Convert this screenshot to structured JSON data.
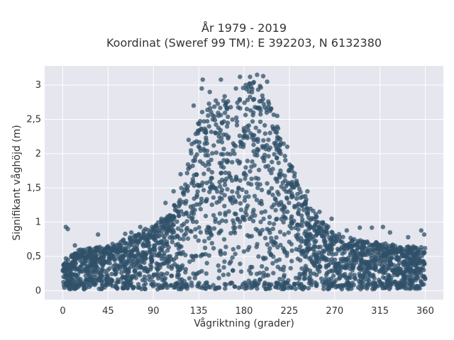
{
  "chart_data": {
    "type": "scatter",
    "title": "År 1979 - 2019",
    "subtitle": "Koordinat (Sweref 99 TM): E 392203, N 6132380",
    "xlabel": "Vågriktning (grader)",
    "ylabel": "Signifikant våghöjd (m)",
    "xlim": [
      -18,
      378
    ],
    "ylim": [
      -0.13,
      3.28
    ],
    "xticks": [
      0,
      45,
      90,
      135,
      180,
      225,
      270,
      315,
      360
    ],
    "xtick_labels": [
      "0",
      "45",
      "90",
      "135",
      "180",
      "225",
      "270",
      "315",
      "360"
    ],
    "yticks": [
      0,
      0.5,
      1,
      1.5,
      2,
      2.5,
      3
    ],
    "ytick_labels": [
      "0",
      "0,5",
      "1",
      "1,5",
      "2",
      "2,5",
      "3"
    ],
    "grid": true,
    "legend": "none",
    "colors": {
      "marker": "#2f5068",
      "plot_bg": "#e5e6ee",
      "grid": "#ffffff"
    },
    "envelope": {
      "x": [
        0,
        20,
        45,
        70,
        90,
        105,
        120,
        130,
        140,
        150,
        160,
        170,
        180,
        190,
        200,
        210,
        225,
        240,
        255,
        270,
        290,
        315,
        340,
        360
      ],
      "y_max": [
        0.5,
        0.62,
        0.66,
        0.8,
        0.95,
        1.1,
        1.6,
        2.3,
        2.75,
        2.8,
        2.85,
        2.75,
        3.0,
        3.05,
        2.95,
        2.6,
        1.9,
        1.4,
        1.05,
        0.85,
        0.75,
        0.7,
        0.65,
        0.65
      ]
    },
    "outliers": [
      {
        "x": 3,
        "y": 0.93
      },
      {
        "x": 5,
        "y": 0.9
      },
      {
        "x": 12,
        "y": 0.66
      },
      {
        "x": 35,
        "y": 0.82
      },
      {
        "x": 62,
        "y": 0.83
      },
      {
        "x": 68,
        "y": 0.85
      },
      {
        "x": 77,
        "y": 0.93
      },
      {
        "x": 82,
        "y": 0.9
      },
      {
        "x": 98,
        "y": 1.05
      },
      {
        "x": 102,
        "y": 1.28
      },
      {
        "x": 110,
        "y": 1.45
      },
      {
        "x": 117,
        "y": 1.7
      },
      {
        "x": 125,
        "y": 2.2
      },
      {
        "x": 130,
        "y": 2.7
      },
      {
        "x": 138,
        "y": 2.95
      },
      {
        "x": 139,
        "y": 3.08
      },
      {
        "x": 146,
        "y": 2.9
      },
      {
        "x": 157,
        "y": 3.08
      },
      {
        "x": 163,
        "y": 2.65
      },
      {
        "x": 172,
        "y": 2.95
      },
      {
        "x": 176,
        "y": 3.12
      },
      {
        "x": 186,
        "y": 3.12
      },
      {
        "x": 193,
        "y": 3.15
      },
      {
        "x": 199,
        "y": 3.13
      },
      {
        "x": 203,
        "y": 3.05
      },
      {
        "x": 213,
        "y": 2.55
      },
      {
        "x": 223,
        "y": 2.1
      },
      {
        "x": 243,
        "y": 1.45
      },
      {
        "x": 255,
        "y": 1.15
      },
      {
        "x": 267,
        "y": 1.05
      },
      {
        "x": 282,
        "y": 0.88
      },
      {
        "x": 295,
        "y": 0.92
      },
      {
        "x": 307,
        "y": 0.92
      },
      {
        "x": 318,
        "y": 0.93
      },
      {
        "x": 325,
        "y": 0.85
      },
      {
        "x": 343,
        "y": 0.78
      },
      {
        "x": 356,
        "y": 0.88
      },
      {
        "x": 359,
        "y": 0.82
      }
    ],
    "floor_y": 0.02
  }
}
